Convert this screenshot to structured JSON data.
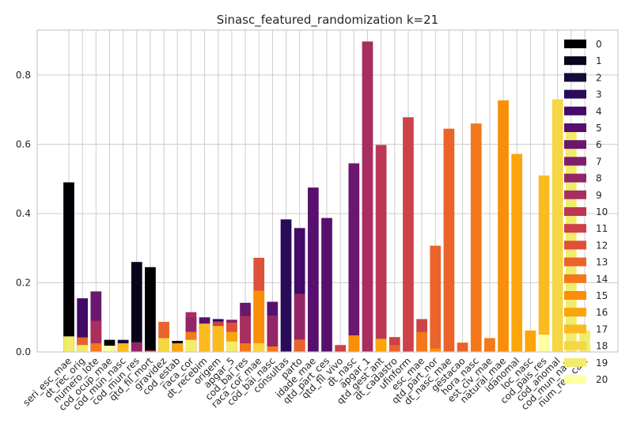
{
  "chart_data": {
    "type": "bar",
    "title": "Sinasc_featured_randomization k=21",
    "xlabel": "",
    "ylabel": "",
    "ylim": [
      0,
      0.93
    ],
    "yticks": [
      0.0,
      0.2,
      0.4,
      0.6,
      0.8
    ],
    "ytick_labels": [
      "0.0",
      "0.2",
      "0.4",
      "0.6",
      "0.8"
    ],
    "grid": true,
    "legend_position": "right",
    "categories": [
      "seri_esc_mae",
      "dt_rec_orig",
      "numero_lote",
      "cod_ocup_mae",
      "cod_mun_nasc",
      "cod_mun_res",
      "qtd_fil_mort",
      "gravidez",
      "cod_estab",
      "raca_cor",
      "dt_recebim",
      "origem",
      "apgar_5",
      "cod_bai_res",
      "raca_cor_mae",
      "cod_bai_nasc",
      "consultas",
      "parto",
      "idade_mae",
      "qtd_part_ces",
      "qtd_fil_vivo",
      "dt_nasc",
      "apgar_1",
      "qtd_gest_ant",
      "dt_cadastro",
      "ufinform",
      "esc_mae",
      "qtd_part_nor",
      "dt_nasc_mae",
      "gestacao",
      "hora_nasc",
      "est_civ_mae",
      "natural_mae",
      "idanomal",
      "loc_nasc",
      "cod_pais_res",
      "cod_anomal",
      "cod_mun_natu",
      "num_reg_cart"
    ],
    "legend_labels": [
      "0",
      "1",
      "2",
      "3",
      "4",
      "5",
      "6",
      "7",
      "8",
      "9",
      "10",
      "11",
      "12",
      "13",
      "14",
      "15",
      "16",
      "17",
      "18",
      "19",
      "20"
    ],
    "colors": [
      "#000004",
      "#07051b",
      "#160b39",
      "#2a0b59",
      "#420a68",
      "#57106e",
      "#6a176e",
      "#7f1f6c",
      "#932667",
      "#a82e5f",
      "#bc3754",
      "#cc4248",
      "#dd513a",
      "#ea632a",
      "#f37819",
      "#f98e09",
      "#fca50a",
      "#fbba1f",
      "#f6d645",
      "#f1ec6a",
      "#fcffa4"
    ],
    "bars": [
      {
        "category": "seri_esc_mae",
        "segments": [
          {
            "cluster": 0,
            "value": 0.49
          },
          {
            "cluster": 19,
            "value": 0.045
          }
        ]
      },
      {
        "category": "dt_rec_orig",
        "segments": [
          {
            "cluster": 4,
            "value": 0.155
          },
          {
            "cluster": 13,
            "value": 0.042
          },
          {
            "cluster": 19,
            "value": 0.02
          }
        ]
      },
      {
        "category": "numero_lote",
        "segments": [
          {
            "cluster": 6,
            "value": 0.175
          },
          {
            "cluster": 9,
            "value": 0.09
          },
          {
            "cluster": 14,
            "value": 0.025
          }
        ]
      },
      {
        "category": "cod_ocup_mae",
        "segments": [
          {
            "cluster": 0,
            "value": 0.035
          },
          {
            "cluster": 20,
            "value": 0.018
          }
        ]
      },
      {
        "category": "cod_mun_nasc",
        "segments": [
          {
            "cluster": 2,
            "value": 0.035
          },
          {
            "cluster": 17,
            "value": 0.025
          }
        ]
      },
      {
        "category": "cod_mun_res",
        "segments": [
          {
            "cluster": 1,
            "value": 0.26
          },
          {
            "cluster": 8,
            "value": 0.028
          }
        ]
      },
      {
        "category": "qtd_fil_mort",
        "segments": [
          {
            "cluster": 0,
            "value": 0.245
          },
          {
            "cluster": 11,
            "value": 0.004
          }
        ]
      },
      {
        "category": "gravidez",
        "segments": [
          {
            "cluster": 13,
            "value": 0.087
          },
          {
            "cluster": 18,
            "value": 0.04
          }
        ]
      },
      {
        "category": "cod_estab",
        "segments": [
          {
            "cluster": 0,
            "value": 0.032
          },
          {
            "cluster": 16,
            "value": 0.025
          }
        ]
      },
      {
        "category": "raca_cor",
        "segments": [
          {
            "cluster": 9,
            "value": 0.115
          },
          {
            "cluster": 8,
            "value": 0.1
          },
          {
            "cluster": 14,
            "value": 0.058
          },
          {
            "cluster": 19,
            "value": 0.035
          }
        ]
      },
      {
        "category": "dt_recebim",
        "segments": [
          {
            "cluster": 5,
            "value": 0.1
          },
          {
            "cluster": 17,
            "value": 0.082
          }
        ]
      },
      {
        "category": "origem",
        "segments": [
          {
            "cluster": 3,
            "value": 0.095
          },
          {
            "cluster": 11,
            "value": 0.088
          },
          {
            "cluster": 17,
            "value": 0.075
          }
        ]
      },
      {
        "category": "apgar_5",
        "segments": [
          {
            "cluster": 7,
            "value": 0.093
          },
          {
            "cluster": 12,
            "value": 0.085
          },
          {
            "cluster": 16,
            "value": 0.058
          },
          {
            "cluster": 19,
            "value": 0.03
          }
        ]
      },
      {
        "category": "cod_bai_res",
        "segments": [
          {
            "cluster": 6,
            "value": 0.142
          },
          {
            "cluster": 9,
            "value": 0.104
          },
          {
            "cluster": 14,
            "value": 0.025
          }
        ]
      },
      {
        "category": "raca_cor_mae",
        "segments": [
          {
            "cluster": 12,
            "value": 0.272
          },
          {
            "cluster": 15,
            "value": 0.177
          },
          {
            "cluster": 18,
            "value": 0.025
          }
        ]
      },
      {
        "category": "cod_bai_nasc",
        "segments": [
          {
            "cluster": 5,
            "value": 0.145
          },
          {
            "cluster": 8,
            "value": 0.105
          },
          {
            "cluster": 14,
            "value": 0.016
          }
        ]
      },
      {
        "category": "consultas",
        "segments": [
          {
            "cluster": 3,
            "value": 0.383
          }
        ]
      },
      {
        "category": "parto",
        "segments": [
          {
            "cluster": 4,
            "value": 0.358
          },
          {
            "cluster": 8,
            "value": 0.168
          },
          {
            "cluster": 13,
            "value": 0.036
          }
        ]
      },
      {
        "category": "idade_mae",
        "segments": [
          {
            "cluster": 5,
            "value": 0.475
          }
        ]
      },
      {
        "category": "qtd_part_ces",
        "segments": [
          {
            "cluster": 5,
            "value": 0.387
          }
        ]
      },
      {
        "category": "qtd_fil_vivo",
        "segments": [
          {
            "cluster": 11,
            "value": 0.02
          }
        ]
      },
      {
        "category": "dt_nasc",
        "segments": [
          {
            "cluster": 6,
            "value": 0.545
          },
          {
            "cluster": 15,
            "value": 0.048
          }
        ]
      },
      {
        "category": "apgar_1",
        "segments": [
          {
            "cluster": 9,
            "value": 0.897
          }
        ]
      },
      {
        "category": "qtd_gest_ant",
        "segments": [
          {
            "cluster": 10,
            "value": 0.598
          },
          {
            "cluster": 16,
            "value": 0.038
          }
        ]
      },
      {
        "category": "dt_cadastro",
        "segments": [
          {
            "cluster": 11,
            "value": 0.043
          },
          {
            "cluster": 13,
            "value": 0.02
          }
        ]
      },
      {
        "category": "ufinform",
        "segments": [
          {
            "cluster": 11,
            "value": 0.678
          }
        ]
      },
      {
        "category": "esc_mae",
        "segments": [
          {
            "cluster": 11,
            "value": 0.095
          },
          {
            "cluster": 14,
            "value": 0.058
          }
        ]
      },
      {
        "category": "qtd_part_nor",
        "segments": [
          {
            "cluster": 13,
            "value": 0.307
          },
          {
            "cluster": 15,
            "value": 0.01
          }
        ]
      },
      {
        "category": "dt_nasc_mae",
        "segments": [
          {
            "cluster": 13,
            "value": 0.645
          }
        ]
      },
      {
        "category": "gestacao",
        "segments": [
          {
            "cluster": 13,
            "value": 0.027
          }
        ]
      },
      {
        "category": "hora_nasc",
        "segments": [
          {
            "cluster": 14,
            "value": 0.66
          }
        ]
      },
      {
        "category": "est_civ_mae",
        "segments": [
          {
            "cluster": 14,
            "value": 0.04
          }
        ]
      },
      {
        "category": "natural_mae",
        "segments": [
          {
            "cluster": 15,
            "value": 0.727
          }
        ]
      },
      {
        "category": "idanomal",
        "segments": [
          {
            "cluster": 16,
            "value": 0.572
          }
        ]
      },
      {
        "category": "loc_nasc",
        "segments": [
          {
            "cluster": 16,
            "value": 0.062
          }
        ]
      },
      {
        "category": "cod_pais_res",
        "segments": [
          {
            "cluster": 17,
            "value": 0.51
          },
          {
            "cluster": 20,
            "value": 0.05
          }
        ]
      },
      {
        "category": "cod_anomal",
        "segments": [
          {
            "cluster": 18,
            "value": 0.73
          }
        ]
      },
      {
        "category": "cod_mun_natu",
        "segments": [
          {
            "cluster": 19,
            "value": 0.66
          }
        ]
      },
      {
        "category": "num_reg_cart",
        "segments": [
          {
            "cluster": 19,
            "value": 0.062
          }
        ]
      }
    ]
  }
}
